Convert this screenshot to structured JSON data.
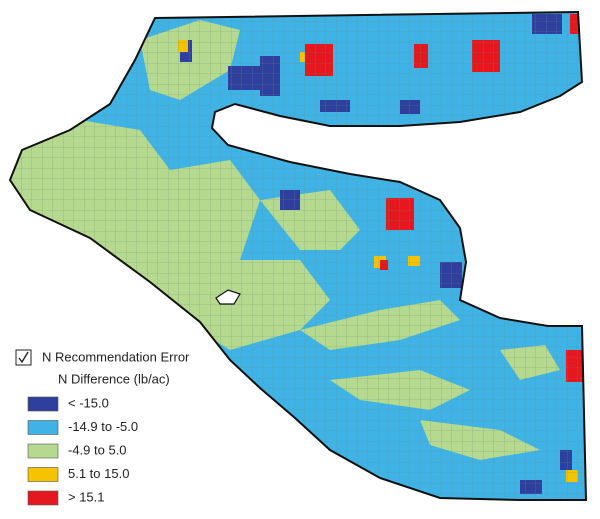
{
  "legend": {
    "title": "N Recommendation Error",
    "subtitle": "N Difference (lb/ac)",
    "items": [
      {
        "label": "< -15.0",
        "color": "#2e3f9e"
      },
      {
        "label": "-14.9 to -5.0",
        "color": "#3fb3e6"
      },
      {
        "label": "-4.9 to 5.0",
        "color": "#b5d98e"
      },
      {
        "label": "5.1 to 15.0",
        "color": "#f5c300"
      },
      {
        "label": "> 15.1",
        "color": "#e5171f"
      }
    ]
  }
}
